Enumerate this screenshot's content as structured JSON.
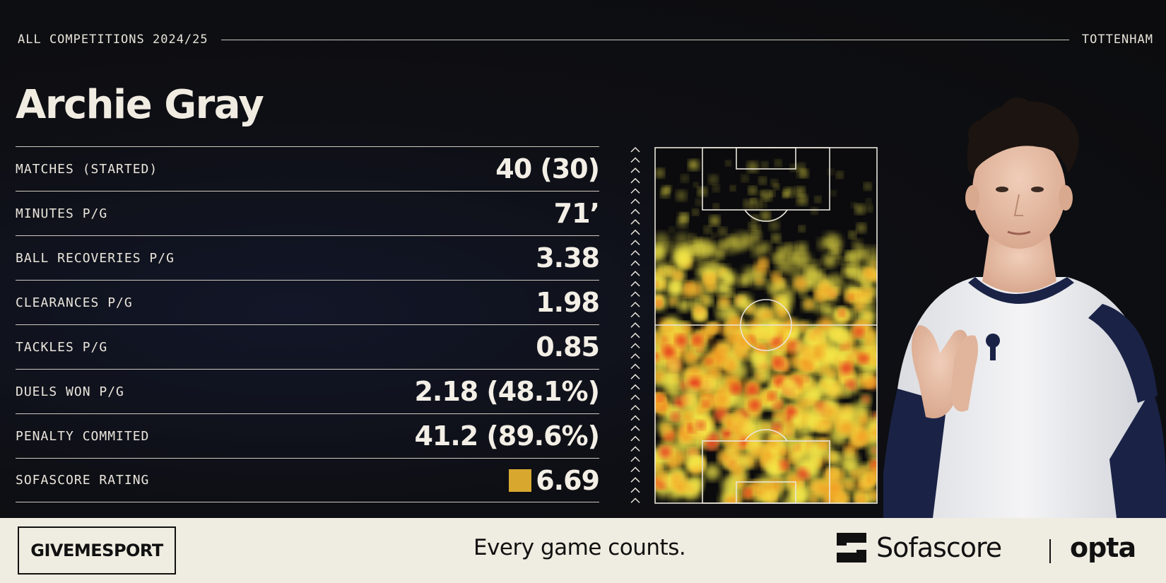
{
  "header": {
    "competition": "ALL COMPETITIONS 2024/25",
    "club": "TOTTENHAM"
  },
  "player": {
    "name": "Archie Gray"
  },
  "stats": [
    {
      "label": "MATCHES (STARTED)",
      "value": "40 (30)"
    },
    {
      "label": "MINUTES P/G",
      "value": "71’"
    },
    {
      "label": "BALL RECOVERIES P/G",
      "value": "3.38"
    },
    {
      "label": "CLEARANCES P/G",
      "value": "1.98"
    },
    {
      "label": "TACKLES P/G",
      "value": "0.85"
    },
    {
      "label": "DUELS WON P/G",
      "value": "2.18 (48.1%)"
    },
    {
      "label": "PENALTY COMMITED",
      "value": "41.2 (89.6%)"
    },
    {
      "label": "SOFASCORE RATING",
      "value": "6.69"
    }
  ],
  "colors": {
    "rating_swatch": "#d8a82e",
    "background": "#0d0d0f",
    "footer": "#efece1",
    "heat_low": "#f5e94a",
    "heat_mid": "#f29a22",
    "heat_high": "#e3261f"
  },
  "footer": {
    "brand": "GIVEMESPORT",
    "tagline": "Every game counts.",
    "partner1": "Sofascore",
    "partner2": "opta"
  },
  "icons": {
    "direction": "chevron-up-icon",
    "partner_logo": "sofascore-logo-icon"
  }
}
